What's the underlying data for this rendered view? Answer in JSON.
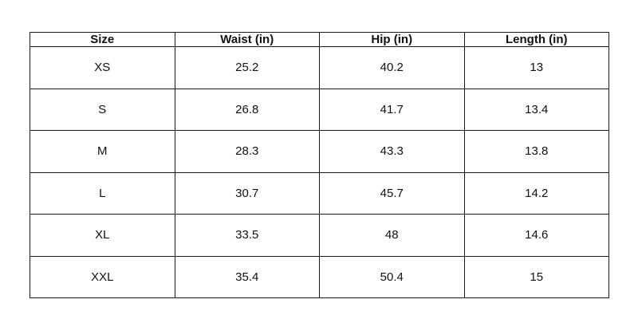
{
  "table": {
    "headers": [
      "Size",
      "Waist (in)",
      "Hip (in)",
      "Length (in)"
    ],
    "rows": [
      [
        "XS",
        "25.2",
        "40.2",
        "13"
      ],
      [
        "S",
        "26.8",
        "41.7",
        "13.4"
      ],
      [
        "M",
        "28.3",
        "43.3",
        "13.8"
      ],
      [
        "L",
        "30.7",
        "45.7",
        "14.2"
      ],
      [
        "XL",
        "33.5",
        "48",
        "14.6"
      ],
      [
        "XXL",
        "35.4",
        "50.4",
        "15"
      ]
    ]
  }
}
